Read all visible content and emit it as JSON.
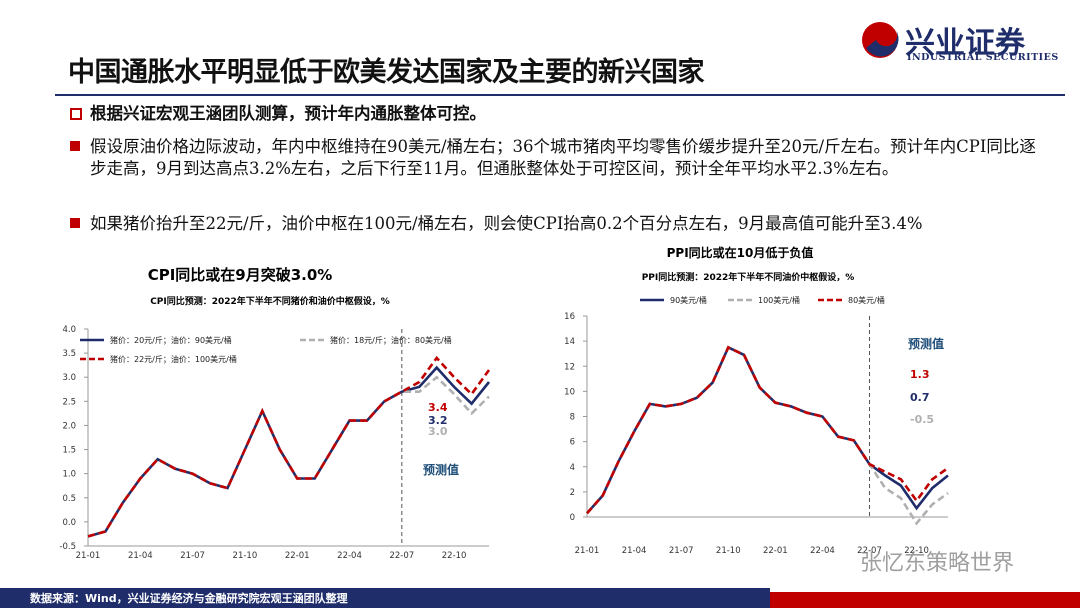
{
  "header": {
    "title": "中国通胀水平明显低于欧美发达国家及主要的新兴国家",
    "logo": "兴业证券",
    "logo_en": "INDUSTRIAL SECURITIES"
  },
  "bullets": [
    "根据兴证宏观王涵团队测算，预计年内通胀整体可控。",
    "假设原油价格边际波动，年内中枢维持在90美元/桶左右；36个城市猪肉平均零售价缓步提升至20元/斤左右。预计年内CPI同比逐步走高，9月到达高点3.2%左右，之后下行至11月。但通胀整体处于可控区间，预计全年平均水平2.3%左右。",
    "如果猪价抬升至22元/斤，油价中枢在100元/桶左右，则会使CPI抬高0.2个百分点左右，9月最高值可能升至3.4%"
  ],
  "footer": "数据来源：Wind，兴业证券经济与金融研究院宏观王涵团队整理",
  "watermark": "张忆东策略世界",
  "chart_data": [
    {
      "type": "line",
      "title": "CPI同比或在9月突破3.0%",
      "subtitle": "CPI同比预测：2022年下半年不同猪价和油价中枢假设，%",
      "categories": [
        "21-01",
        null,
        null,
        "21-04",
        null,
        null,
        "21-07",
        null,
        null,
        "21-10",
        null,
        null,
        "22-01",
        null,
        null,
        "22-04",
        null,
        null,
        "22-07",
        null,
        null,
        "22-10",
        null,
        null
      ],
      "series": [
        {
          "name": "猪价：20元/斤；油价：90美元/桶",
          "color": "#1f2d6b",
          "dash": false,
          "values": [
            -0.3,
            -0.2,
            0.4,
            0.9,
            1.3,
            1.1,
            1.0,
            0.8,
            0.7,
            1.5,
            2.3,
            1.5,
            0.9,
            0.9,
            1.5,
            2.1,
            2.1,
            2.5,
            2.7,
            2.8,
            3.2,
            2.8,
            2.45,
            2.9
          ]
        },
        {
          "name": "猪价：18元/斤；油价：80美元/桶",
          "color": "#b0b0b0",
          "dash": true,
          "values": [
            -0.3,
            -0.2,
            0.4,
            0.9,
            1.3,
            1.1,
            1.0,
            0.8,
            0.7,
            1.5,
            2.3,
            1.5,
            0.9,
            0.9,
            1.5,
            2.1,
            2.1,
            2.5,
            2.7,
            2.7,
            3.0,
            2.65,
            2.25,
            2.6
          ]
        },
        {
          "name": "猪价：22元/斤；油价：100美元/桶",
          "color": "#c00000",
          "dash": true,
          "values": [
            -0.3,
            -0.2,
            0.4,
            0.9,
            1.3,
            1.1,
            1.0,
            0.8,
            0.7,
            1.5,
            2.3,
            1.5,
            0.9,
            0.9,
            1.5,
            2.1,
            2.1,
            2.5,
            2.7,
            2.9,
            3.4,
            3.0,
            2.65,
            3.15
          ]
        }
      ],
      "ylim": [
        -0.5,
        4.0
      ],
      "yticks": [
        -0.5,
        {
          "value": 0,
          "label": "0.0"
        },
        0.5,
        {
          "value": 1,
          "label": "1.0"
        },
        1.5,
        {
          "value": 2,
          "label": "2.0"
        },
        2.5,
        {
          "value": 3,
          "label": "3.0"
        },
        3.5,
        {
          "value": 4,
          "label": "4.0"
        }
      ],
      "forecast_start": "22-07",
      "annotations": [
        {
          "text": "3.4",
          "color": "#c00000"
        },
        {
          "text": "3.2",
          "color": "#1f2d6b"
        },
        {
          "text": "3.0",
          "color": "#b0b0b0"
        },
        {
          "text": "预测值",
          "color": "#1f4e79"
        }
      ]
    },
    {
      "type": "line",
      "title": "PPI同比或在10月低于负值",
      "subtitle": "PPI同比预测：2022年下半年不同油价中枢假设，%",
      "categories": [
        "21-01",
        null,
        null,
        "21-04",
        null,
        null,
        "21-07",
        null,
        null,
        "21-10",
        null,
        null,
        "22-01",
        null,
        null,
        "22-04",
        null,
        null,
        "22-07",
        null,
        null,
        "22-10",
        null,
        null
      ],
      "series": [
        {
          "name": "90美元/桶",
          "color": "#1f2d6b",
          "dash": false,
          "values": [
            0.3,
            1.7,
            4.4,
            6.8,
            9.0,
            8.8,
            9.0,
            9.5,
            10.7,
            13.5,
            12.9,
            10.3,
            9.1,
            8.8,
            8.3,
            8.0,
            6.4,
            6.1,
            4.2,
            3.3,
            2.5,
            0.7,
            2.3,
            3.3
          ]
        },
        {
          "name": "100美元/桶",
          "color": "#b0b0b0",
          "dash": true,
          "values": [
            0.3,
            1.7,
            4.4,
            6.8,
            9.0,
            8.8,
            9.0,
            9.5,
            10.7,
            13.5,
            12.9,
            10.3,
            9.1,
            8.8,
            8.3,
            8.0,
            6.4,
            6.1,
            4.2,
            2.3,
            1.5,
            -0.5,
            1.0,
            1.9
          ]
        },
        {
          "name": "80美元/桶",
          "color": "#c00000",
          "dash": true,
          "values": [
            0.3,
            1.7,
            4.4,
            6.8,
            9.0,
            8.8,
            9.0,
            9.5,
            10.7,
            13.5,
            12.9,
            10.3,
            9.1,
            8.8,
            8.3,
            8.0,
            6.4,
            6.1,
            4.2,
            3.6,
            3.0,
            1.3,
            3.0,
            3.9
          ]
        }
      ],
      "ylim": [
        0,
        16
      ],
      "yticks": [
        0,
        2,
        4,
        6,
        8,
        10,
        12,
        14,
        16
      ],
      "forecast_start": "22-07",
      "annotations": [
        {
          "text": "预测值",
          "color": "#1f4e79"
        },
        {
          "text": "1.3",
          "color": "#c00000"
        },
        {
          "text": "0.7",
          "color": "#1f2d6b"
        },
        {
          "text": "-0.5",
          "color": "#b0b0b0"
        }
      ]
    }
  ]
}
